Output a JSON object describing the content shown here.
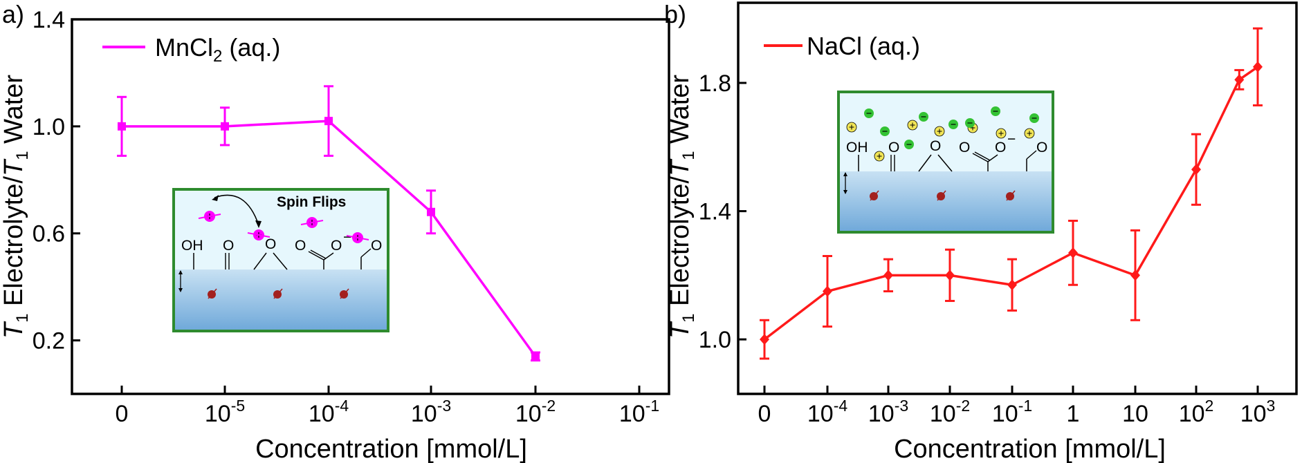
{
  "chart_data": [
    {
      "panel_label": "a)",
      "type": "line",
      "xscale": "categorical-log",
      "x_tick_labels": [
        {
          "base": "0",
          "exp": ""
        },
        {
          "base": "10",
          "exp": "-5"
        },
        {
          "base": "10",
          "exp": "-4"
        },
        {
          "base": "10",
          "exp": "-3"
        },
        {
          "base": "10",
          "exp": "-2"
        },
        {
          "base": "10",
          "exp": "-1"
        }
      ],
      "xlabel": "Concentration [mmol/L]",
      "ylabel": {
        "t": "T",
        "sub": "1",
        "mid": " Electrolyte/",
        "t2": "T",
        "sub2": "1",
        "end": " Water"
      },
      "ylim": [
        0.0,
        1.4
      ],
      "y_ticks": [
        0.2,
        0.6,
        1.0,
        1.4
      ],
      "y_tick_labels": [
        "0.2",
        "0.6",
        "1.0",
        "1.4"
      ],
      "legend_position": "top-left",
      "series": [
        {
          "name": "MnCl2 (aq.)",
          "legend": {
            "main": "MnCl",
            "sub": "2",
            "tail": " (aq.)"
          },
          "color": "#ff00ff",
          "marker": "square",
          "x_index": [
            0,
            1,
            2,
            3,
            4
          ],
          "values": [
            1.0,
            1.0,
            1.02,
            0.68,
            0.14
          ],
          "errors": [
            0.11,
            0.07,
            0.13,
            0.08,
            0.015
          ]
        }
      ],
      "inset": {
        "title": "Spin Flips",
        "surface_labels": {
          "oh": "OH",
          "ketone": "O",
          "ether": "O",
          "carboxyl": "O",
          "charge": "−",
          "aldehyde": "O"
        },
        "border_color": "#2e8b2e"
      }
    },
    {
      "panel_label": "b)",
      "type": "line",
      "xscale": "categorical-log",
      "x_tick_labels": [
        {
          "base": "0",
          "exp": ""
        },
        {
          "base": "10",
          "exp": "-4"
        },
        {
          "base": "10",
          "exp": "-3"
        },
        {
          "base": "10",
          "exp": "-2"
        },
        {
          "base": "10",
          "exp": "-1"
        },
        {
          "base": "1",
          "exp": ""
        },
        {
          "base": "10",
          "exp": ""
        },
        {
          "base": "10",
          "exp": "2"
        },
        {
          "base": "10",
          "exp": "3"
        }
      ],
      "xlabel": "Concentration [mmol/L]",
      "ylabel": {
        "t": "T",
        "sub": "1",
        "mid": " Electrolyte/",
        "t2": "T",
        "sub2": "1",
        "end": " Water"
      },
      "ylim": [
        0.83,
        2.05
      ],
      "y_ticks": [
        1.0,
        1.4,
        1.8
      ],
      "y_tick_labels": [
        "1.0",
        "1.4",
        "1.8"
      ],
      "legend_position": "top-left",
      "series": [
        {
          "name": "NaCl (aq.)",
          "legend": {
            "main": "NaCl",
            "sub": "",
            "tail": " (aq.)"
          },
          "color": "#ff1a1a",
          "marker": "diamond",
          "x_index": [
            0,
            1,
            2,
            3,
            4,
            5,
            6,
            7,
            7.7,
            8
          ],
          "values": [
            1.0,
            1.15,
            1.2,
            1.2,
            1.17,
            1.27,
            1.2,
            1.53,
            1.81,
            1.85
          ],
          "errors": [
            0.06,
            0.11,
            0.05,
            0.08,
            0.08,
            0.1,
            0.14,
            0.11,
            0.03,
            0.12
          ]
        }
      ],
      "inset": {
        "surface_labels": {
          "oh": "OH",
          "ketone": "O",
          "ether": "O",
          "carboxyl": "O",
          "charge": "−",
          "aldehyde": "O"
        },
        "border_color": "#2e8b2e"
      }
    }
  ]
}
